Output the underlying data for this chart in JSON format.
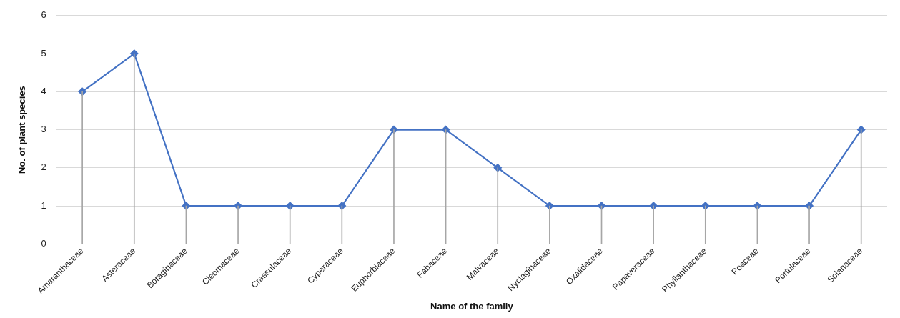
{
  "chart_data": {
    "type": "line",
    "xlabel": "Name of the family",
    "ylabel": "No. of plant species",
    "categories": [
      "Amaranthaceae",
      "Asteraceae",
      "Boraginaceae",
      "Cleomaceae",
      "Crassulaceae",
      "Cyperaceae",
      "Euphorbiaceae",
      "Fabaceae",
      "Malvaceae",
      "Nyctaginaceae",
      "Oxalidaceae",
      "Papaveraceae",
      "Phyllanthaceae",
      "Poaceae",
      "Portulaceae",
      "Solanaceae"
    ],
    "series": [
      {
        "type": "bar",
        "color": "#a6a6a6",
        "values": [
          4,
          5,
          1,
          1,
          1,
          1,
          3,
          3,
          2,
          1,
          1,
          1,
          1,
          1,
          1,
          3
        ]
      },
      {
        "color": "#4472c4",
        "values": [
          4,
          5,
          1,
          1,
          1,
          1,
          3,
          3,
          2,
          1,
          1,
          1,
          1,
          1,
          1,
          3
        ]
      }
    ],
    "ylim": [
      0,
      6
    ],
    "yticks": [
      0,
      1,
      2,
      3,
      4,
      5,
      6
    ],
    "grid": "y",
    "legend": false,
    "marker": "diamond",
    "line_style": "solid"
  }
}
